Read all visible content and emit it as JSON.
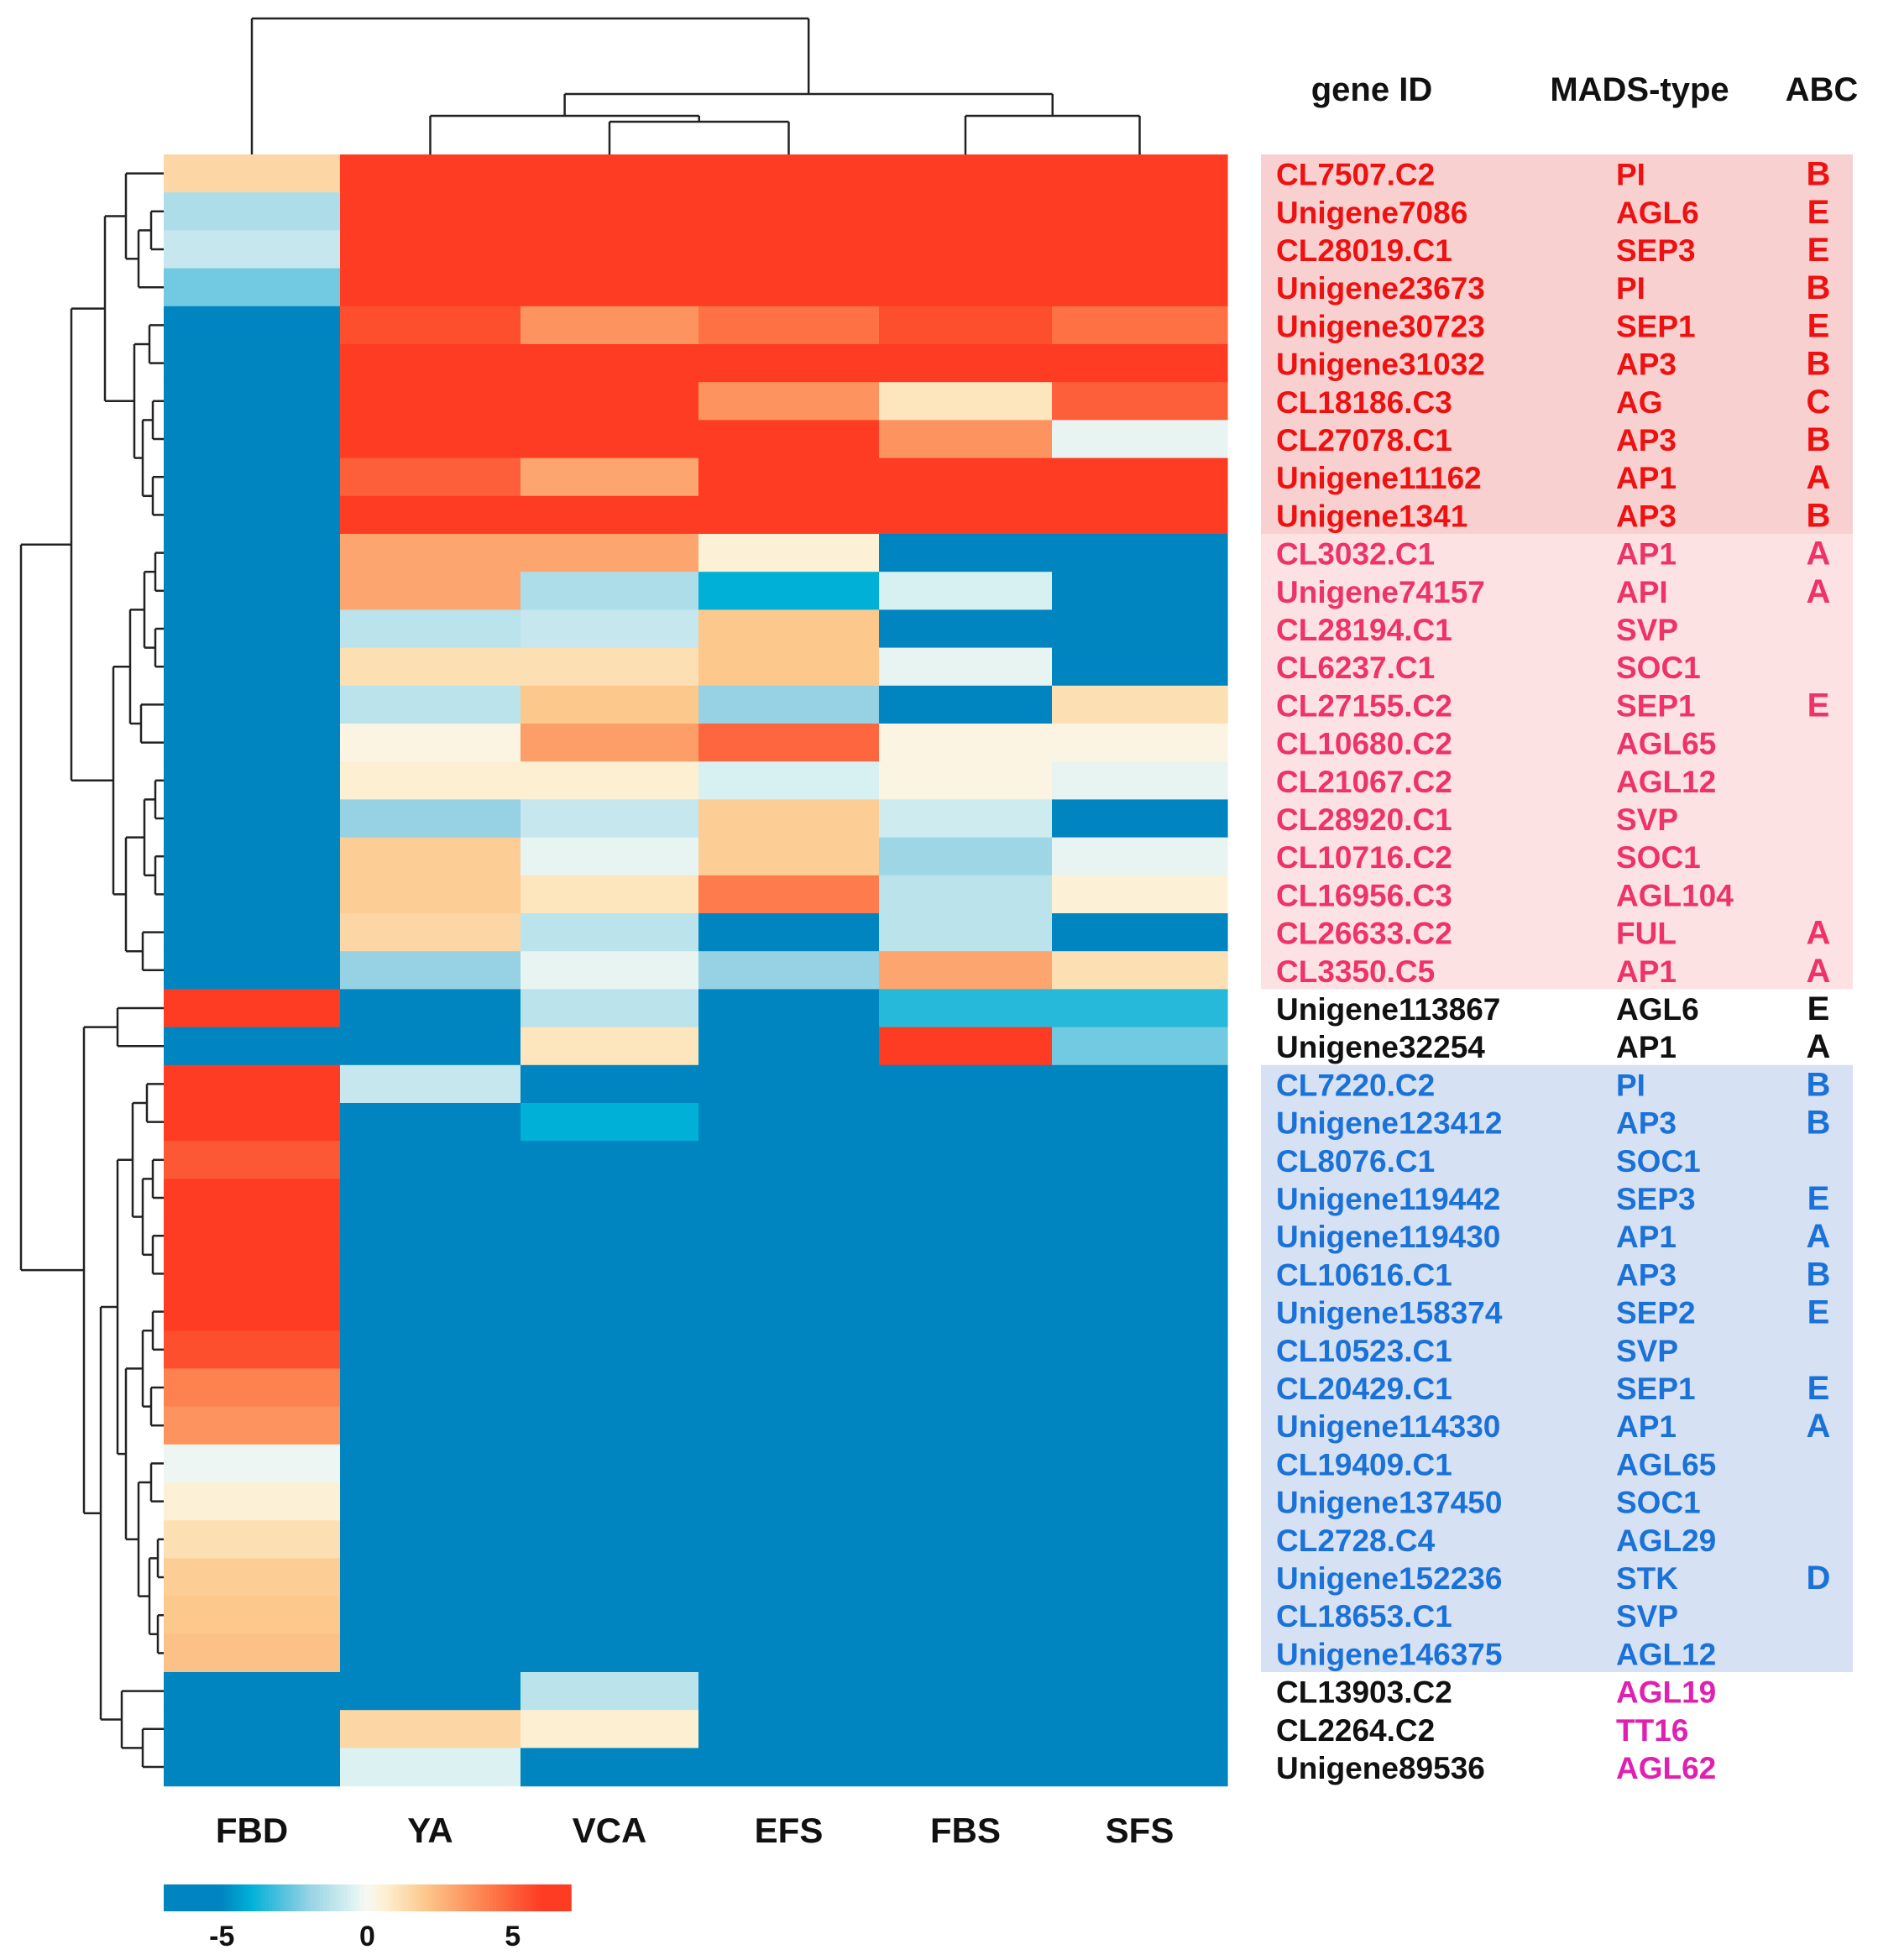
{
  "chart_data": {
    "type": "heatmap",
    "title": "",
    "columns": [
      "FBD",
      "YA",
      "VCA",
      "EFS",
      "FBS",
      "SFS"
    ],
    "column_headers": {
      "gene_id": "gene ID",
      "mads_type": "MADS-type",
      "abc": "ABC"
    },
    "colorbar": {
      "min": -7,
      "max": 7,
      "ticks": [
        -5,
        0,
        5
      ],
      "tick_labels": [
        "-5",
        "0",
        "5"
      ]
    },
    "group_colors": {
      "red": "#ee1111",
      "pink": "#ee3366",
      "black": "#111111",
      "blue": "#1a72d8",
      "magenta": "#e020b0"
    },
    "group_backgrounds": {
      "red": "#f9d0d0",
      "pink": "#fde2e4",
      "blue": "#d6e1f3"
    },
    "rows": [
      {
        "gene": "CL7507.C2",
        "mads": "PI",
        "abc": "B",
        "group": "red",
        "values": [
          1.5,
          7,
          7,
          7,
          7,
          7
        ]
      },
      {
        "gene": "Unigene7086",
        "mads": "AGL6",
        "abc": "E",
        "group": "red",
        "values": [
          -1.5,
          7,
          7,
          7,
          7,
          7
        ]
      },
      {
        "gene": "CL28019.C1",
        "mads": "SEP3",
        "abc": "E",
        "group": "red",
        "values": [
          -1.0,
          7,
          7,
          7,
          7,
          7
        ]
      },
      {
        "gene": "Unigene23673",
        "mads": "PI",
        "abc": "B",
        "group": "red",
        "values": [
          -2.5,
          7,
          7,
          7,
          7,
          7
        ]
      },
      {
        "gene": "Unigene30723",
        "mads": "SEP1",
        "abc": "E",
        "group": "red",
        "values": [
          -6,
          5.5,
          3.5,
          4.5,
          5.5,
          4.5
        ]
      },
      {
        "gene": "Unigene31032",
        "mads": "AP3",
        "abc": "B",
        "group": "red",
        "values": [
          -6,
          7,
          7,
          7,
          7,
          7
        ]
      },
      {
        "gene": "CL18186.C3",
        "mads": "AG",
        "abc": "C",
        "group": "red",
        "values": [
          -5.5,
          7,
          7,
          3.5,
          1.0,
          5.0
        ]
      },
      {
        "gene": "CL27078.C1",
        "mads": "AP3",
        "abc": "B",
        "group": "red",
        "values": [
          -5.5,
          7,
          7,
          7,
          3.5,
          -0.3
        ]
      },
      {
        "gene": "Unigene11162",
        "mads": "AP1",
        "abc": "A",
        "group": "red",
        "values": [
          -5.0,
          5.0,
          3.0,
          7,
          7,
          7
        ]
      },
      {
        "gene": "Unigene1341",
        "mads": "AP3",
        "abc": "B",
        "group": "red",
        "values": [
          -5.0,
          7,
          7,
          7,
          7,
          7
        ]
      },
      {
        "gene": "CL3032.C1",
        "mads": "AP1",
        "abc": "A",
        "group": "pink",
        "values": [
          -6,
          3.0,
          3.0,
          0.5,
          -6,
          -6
        ]
      },
      {
        "gene": "Unigene74157",
        "mads": "API",
        "abc": "A",
        "group": "pink",
        "values": [
          -6,
          3.0,
          -1.5,
          -4.0,
          -0.6,
          -6
        ]
      },
      {
        "gene": "CL28194.C1",
        "mads": "SVP",
        "abc": "",
        "group": "pink",
        "values": [
          -6,
          -1.2,
          -1.0,
          2.0,
          -5.0,
          -6
        ]
      },
      {
        "gene": "CL6237.C1",
        "mads": "SOC1",
        "abc": "",
        "group": "pink",
        "values": [
          -6,
          1.2,
          1.2,
          2.0,
          -0.3,
          -6
        ]
      },
      {
        "gene": "CL27155.C2",
        "mads": "SEP1",
        "abc": "E",
        "group": "pink",
        "values": [
          -6,
          -1.2,
          2.0,
          -2.0,
          -6,
          1.2
        ]
      },
      {
        "gene": "CL10680.C2",
        "mads": "AGL65",
        "abc": "",
        "group": "pink",
        "values": [
          -5.0,
          0.3,
          3.2,
          4.8,
          0.3,
          0.3
        ]
      },
      {
        "gene": "CL21067.C2",
        "mads": "AGL12",
        "abc": "",
        "group": "pink",
        "values": [
          -6,
          0.6,
          0.6,
          -0.6,
          0.3,
          -0.3
        ]
      },
      {
        "gene": "CL28920.C1",
        "mads": "SVP",
        "abc": "",
        "group": "pink",
        "values": [
          -6,
          -2.0,
          -1.0,
          1.8,
          -0.8,
          -5.0
        ]
      },
      {
        "gene": "CL10716.C2",
        "mads": "SOC1",
        "abc": "",
        "group": "pink",
        "values": [
          -6,
          1.8,
          -0.3,
          1.8,
          -1.8,
          -0.3
        ]
      },
      {
        "gene": "CL16956.C3",
        "mads": "AGL104",
        "abc": "",
        "group": "pink",
        "values": [
          -6,
          1.8,
          1.0,
          4.2,
          -1.2,
          0.5
        ]
      },
      {
        "gene": "CL26633.C2",
        "mads": "FUL",
        "abc": "A",
        "group": "pink",
        "values": [
          -6,
          1.5,
          -1.2,
          -5.0,
          -1.2,
          -5.0
        ]
      },
      {
        "gene": "CL3350.C5",
        "mads": "AP1",
        "abc": "A",
        "group": "pink",
        "values": [
          -6,
          -2.0,
          -0.3,
          -2.0,
          3.0,
          1.2
        ]
      },
      {
        "gene": "Unigene113867",
        "mads": "AGL6",
        "abc": "E",
        "group": "black",
        "values": [
          7,
          -6,
          -1.2,
          -6,
          -3.5,
          -3.5
        ]
      },
      {
        "gene": "Unigene32254",
        "mads": "AP1",
        "abc": "A",
        "group": "black",
        "values": [
          -5.0,
          -6,
          1.0,
          -5.0,
          7,
          -2.5
        ]
      },
      {
        "gene": "CL7220.C2",
        "mads": "PI",
        "abc": "B",
        "group": "blue",
        "values": [
          7,
          -1.0,
          -6,
          -6,
          -6,
          -6
        ]
      },
      {
        "gene": "Unigene123412",
        "mads": "AP3",
        "abc": "B",
        "group": "blue",
        "values": [
          7,
          -5.5,
          -4.0,
          -6,
          -6,
          -6
        ]
      },
      {
        "gene": "CL8076.C1",
        "mads": "SOC1",
        "abc": "",
        "group": "blue",
        "values": [
          5.2,
          -6,
          -6,
          -6,
          -6.1,
          -6
        ]
      },
      {
        "gene": "Unigene119442",
        "mads": "SEP3",
        "abc": "E",
        "group": "blue",
        "values": [
          7,
          -6,
          -6,
          -6,
          -6.1,
          -6
        ]
      },
      {
        "gene": "Unigene119430",
        "mads": "AP1",
        "abc": "A",
        "group": "blue",
        "values": [
          7,
          -6,
          -6,
          -6,
          -6,
          -6
        ]
      },
      {
        "gene": "CL10616.C1",
        "mads": "AP3",
        "abc": "B",
        "group": "blue",
        "values": [
          7,
          -6,
          -6,
          -6,
          -6,
          -6
        ]
      },
      {
        "gene": "Unigene158374",
        "mads": "SEP2",
        "abc": "E",
        "group": "blue",
        "values": [
          7,
          -6,
          -6,
          -6,
          -6,
          -6
        ]
      },
      {
        "gene": "CL10523.C1",
        "mads": "SVP",
        "abc": "",
        "group": "blue",
        "values": [
          5.5,
          -6,
          -6,
          -6,
          -6,
          -6
        ]
      },
      {
        "gene": "CL20429.C1",
        "mads": "SEP1",
        "abc": "E",
        "group": "blue",
        "values": [
          4.0,
          -6,
          -6,
          -6,
          -6,
          -6
        ]
      },
      {
        "gene": "Unigene114330",
        "mads": "AP1",
        "abc": "A",
        "group": "blue",
        "values": [
          3.5,
          -6,
          -6,
          -6,
          -6,
          -6
        ]
      },
      {
        "gene": "CL19409.C1",
        "mads": "AGL65",
        "abc": "",
        "group": "blue",
        "values": [
          -0.2,
          -6,
          -6,
          -6,
          -6,
          -6
        ]
      },
      {
        "gene": "Unigene137450",
        "mads": "SOC1",
        "abc": "",
        "group": "blue",
        "values": [
          0.5,
          -6,
          -6,
          -6,
          -6,
          -6
        ]
      },
      {
        "gene": "CL2728.C4",
        "mads": "AGL29",
        "abc": "",
        "group": "blue",
        "values": [
          1.2,
          -6,
          -6,
          -6,
          -6,
          -6
        ]
      },
      {
        "gene": "Unigene152236",
        "mads": "STK",
        "abc": "D",
        "group": "blue",
        "values": [
          1.8,
          -6,
          -6,
          -6,
          -6,
          -6
        ]
      },
      {
        "gene": "CL18653.C1",
        "mads": "SVP",
        "abc": "",
        "group": "blue",
        "values": [
          2.0,
          -6,
          -6,
          -6,
          -6,
          -6
        ]
      },
      {
        "gene": "Unigene146375",
        "mads": "AGL12",
        "abc": "",
        "group": "blue",
        "values": [
          2.2,
          -6,
          -6,
          -6,
          -6,
          -6
        ]
      },
      {
        "gene": "CL13903.C2",
        "mads": "AGL19",
        "abc": "",
        "group": "black",
        "mads_color": "magenta",
        "values": [
          -6,
          -6,
          -1.2,
          -6,
          -6,
          -6
        ]
      },
      {
        "gene": "CL2264.C2",
        "mads": "TT16",
        "abc": "",
        "group": "black",
        "mads_color": "magenta",
        "values": [
          -6,
          1.5,
          0.6,
          -6,
          -6,
          -6
        ]
      },
      {
        "gene": "Unigene89536",
        "mads": "AGL62",
        "abc": "",
        "group": "black",
        "mads_color": "magenta",
        "values": [
          -6,
          -0.5,
          -6,
          -6,
          -6,
          -6
        ]
      }
    ]
  }
}
